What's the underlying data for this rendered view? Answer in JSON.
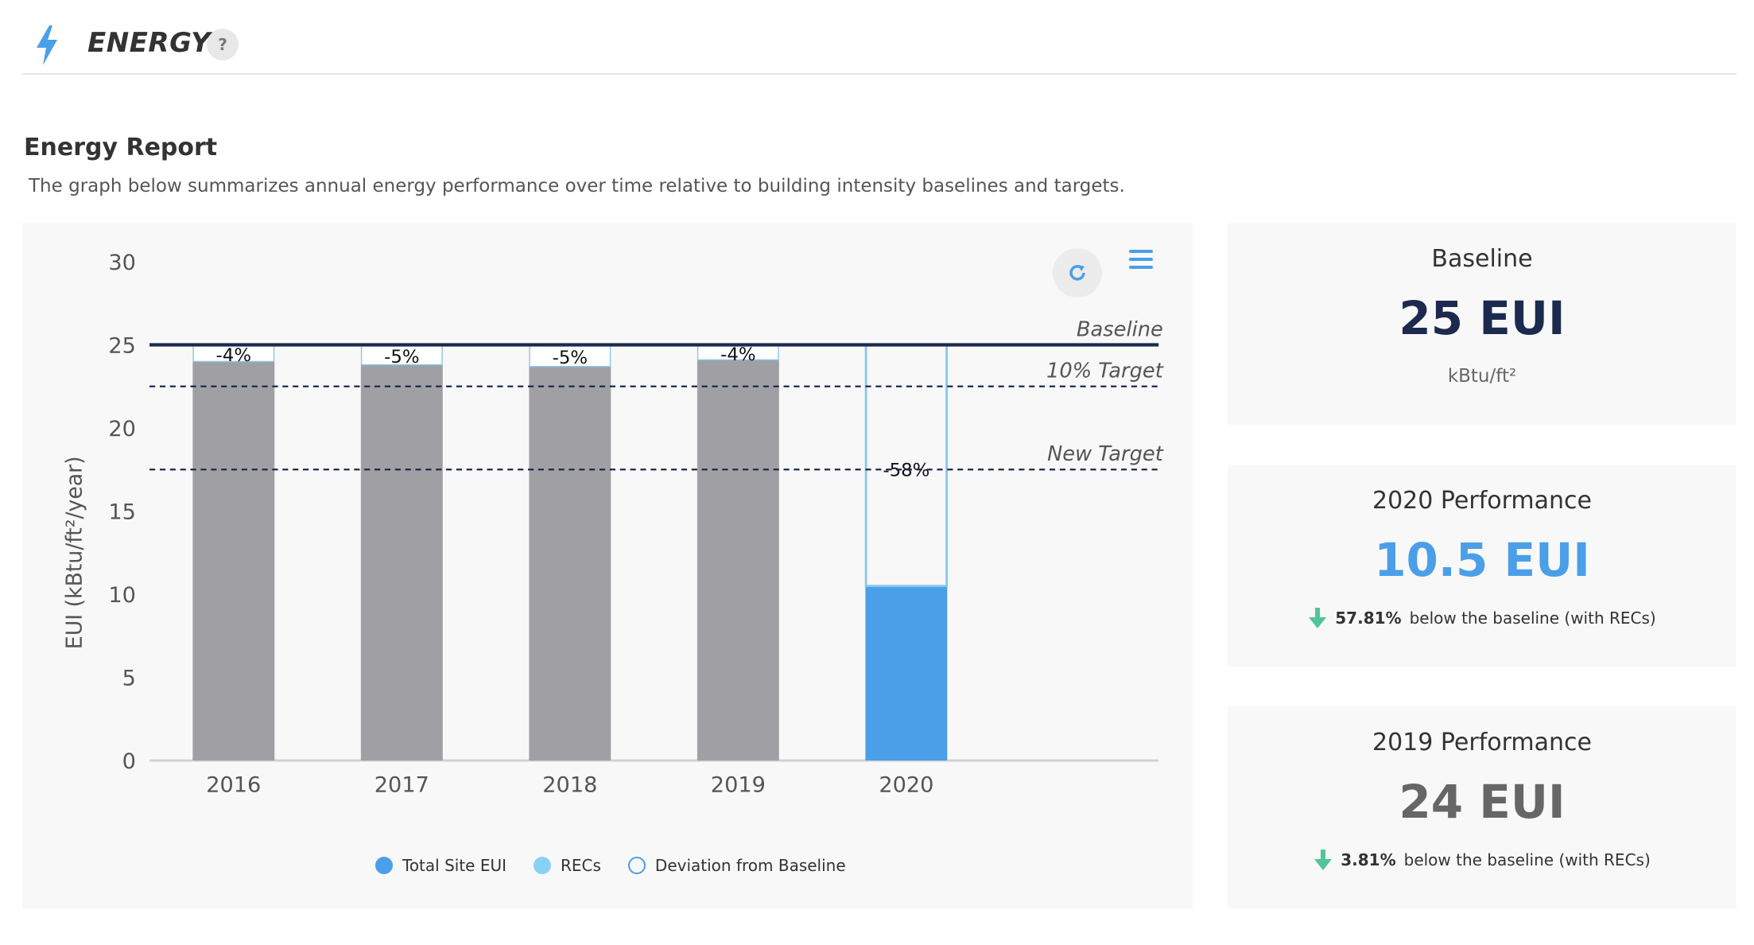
{
  "header": {
    "title": "ENERGY",
    "help_label": "?",
    "icon": "bolt-icon"
  },
  "report": {
    "title": "Energy Report",
    "description": "The graph below summarizes annual energy performance over time relative to building intensity baselines and targets."
  },
  "toolbar": {
    "refresh_icon": "refresh-icon",
    "menu_icon": "hamburger-menu-icon"
  },
  "chart_data": {
    "type": "bar",
    "stacked": true,
    "categories": [
      "2016",
      "2017",
      "2018",
      "2019",
      "2020"
    ],
    "series": [
      {
        "name": "Total Site EUI",
        "values": [
          24.0,
          23.8,
          23.7,
          24.1,
          10.5
        ]
      },
      {
        "name": "RECs",
        "values": [
          0,
          0,
          0,
          0,
          0
        ]
      },
      {
        "name": "Deviation from Baseline",
        "values": [
          1.0,
          1.2,
          1.3,
          0.9,
          14.5
        ]
      }
    ],
    "bar_labels": [
      "-4%",
      "-5%",
      "-5%",
      "-4%",
      "-58%"
    ],
    "reference_lines": [
      {
        "label": "Baseline",
        "value": 25,
        "style": "solid"
      },
      {
        "label": "10% Target",
        "value": 22.5,
        "style": "dashed"
      },
      {
        "label": "New Target",
        "value": 17.5,
        "style": "dashed"
      }
    ],
    "ylabel": "EUI (kBtu/ft²/year)",
    "yticks": [
      0,
      5,
      10,
      15,
      20,
      25,
      30
    ],
    "ylim": [
      0,
      30
    ],
    "legend_position": "bottom",
    "grid": false,
    "colors": {
      "site_eui": "#4a9fe8",
      "site_eui_past": "#a0a0a4",
      "recs": "#88d1f5",
      "deviation_border": "#88c8ec",
      "baseline_line": "#1c2a4f"
    }
  },
  "legend": {
    "site": "Total Site EUI",
    "recs": "RECs",
    "deviation": "Deviation from Baseline"
  },
  "cards": {
    "baseline": {
      "label": "Baseline",
      "value": "25 EUI",
      "unit": "kBtu/ft²"
    },
    "perf2020": {
      "label": "2020 Performance",
      "value": "10.5 EUI",
      "pct": "57.81%",
      "note": "below the baseline (with RECs)"
    },
    "perf2019": {
      "label": "2019 Performance",
      "value": "24 EUI",
      "pct": "3.81%",
      "note": "below the baseline (with RECs)"
    },
    "down_arrow_icon": "down-arrow-icon",
    "down_arrow_color": "#52c49a"
  }
}
